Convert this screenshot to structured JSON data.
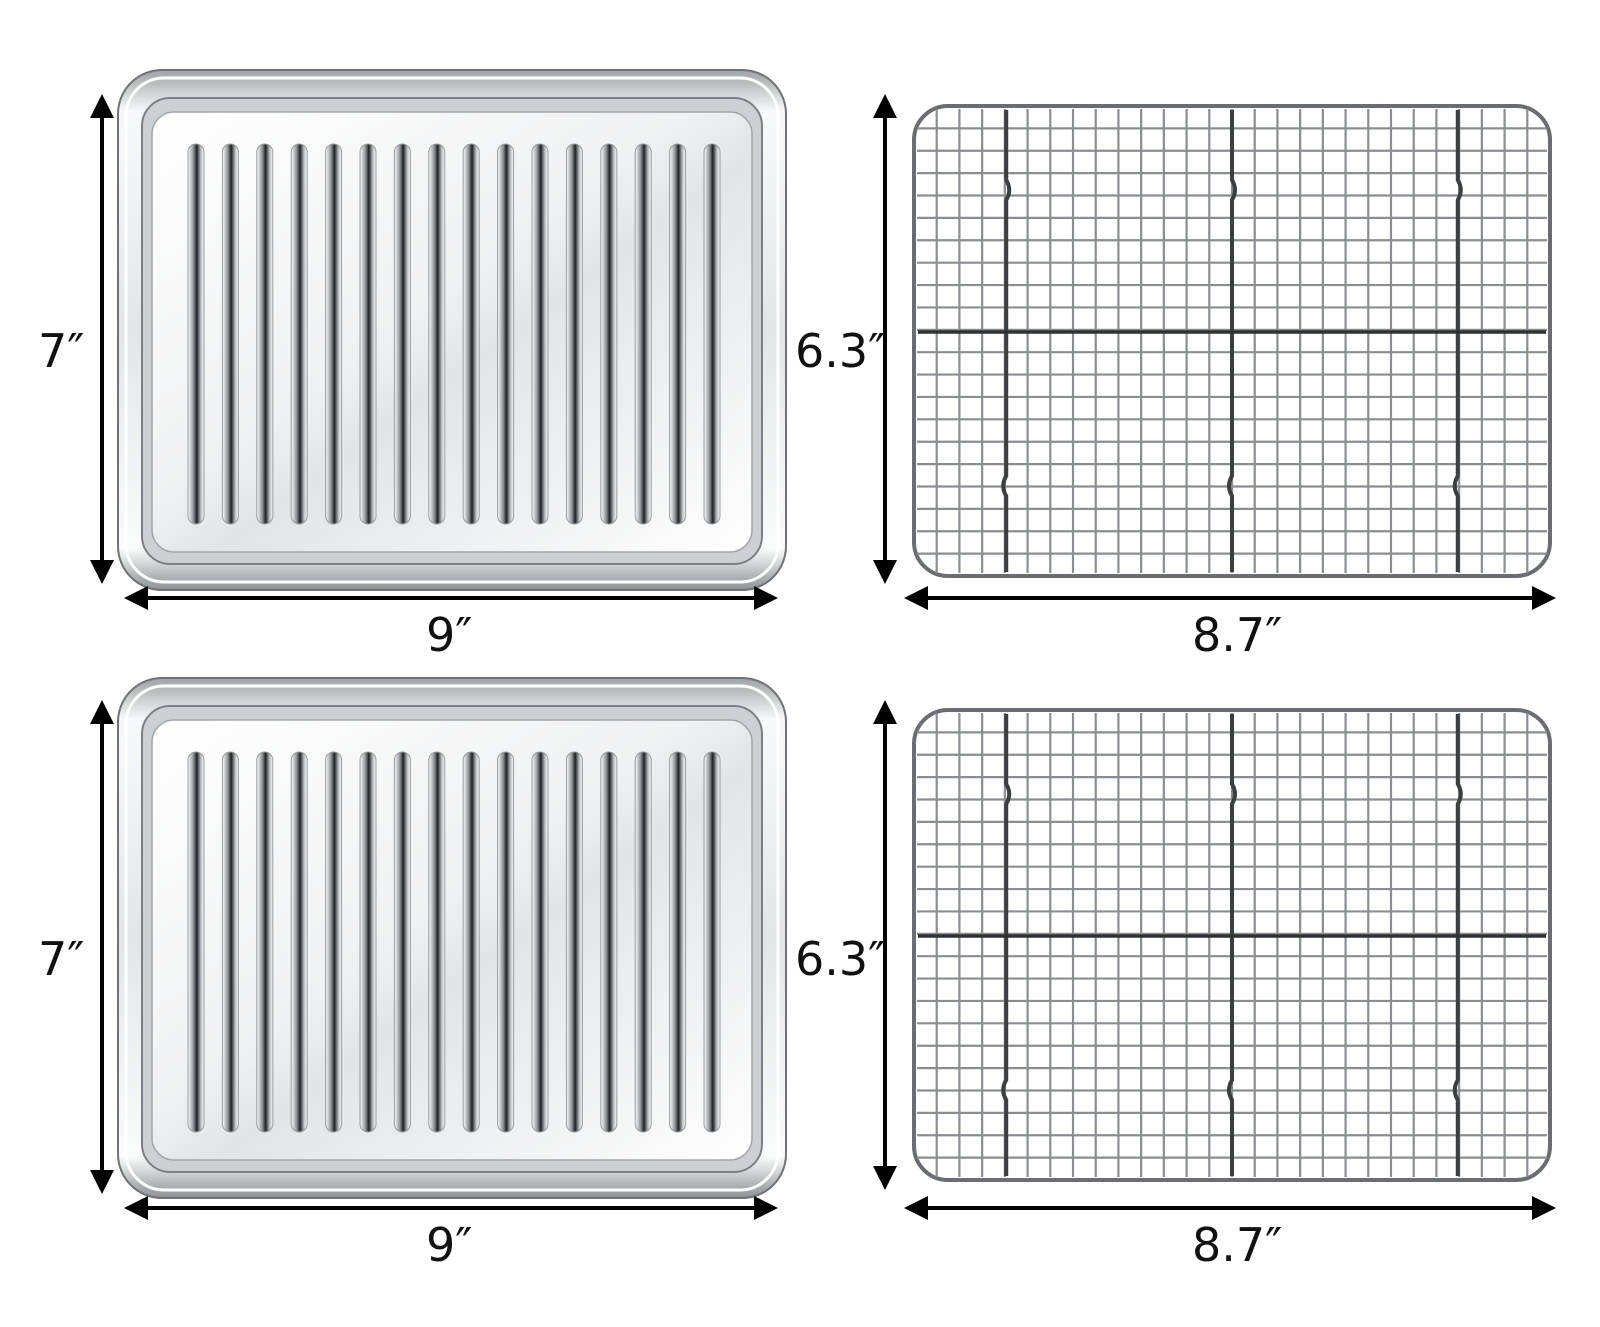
{
  "products": [
    {
      "item": "tray",
      "height_label": "7″",
      "width_label": "9″"
    },
    {
      "item": "rack",
      "height_label": "6.3″",
      "width_label": "8.7″"
    },
    {
      "item": "tray",
      "height_label": "7″",
      "width_label": "9″"
    },
    {
      "item": "rack",
      "height_label": "6.3″",
      "width_label": "8.7″"
    }
  ],
  "colors": {
    "background": "#ffffff",
    "steel_light": "#f4f5f6",
    "steel_mid": "#c8cbce",
    "steel_dark": "#5a5d60",
    "arrow": "#000000"
  }
}
